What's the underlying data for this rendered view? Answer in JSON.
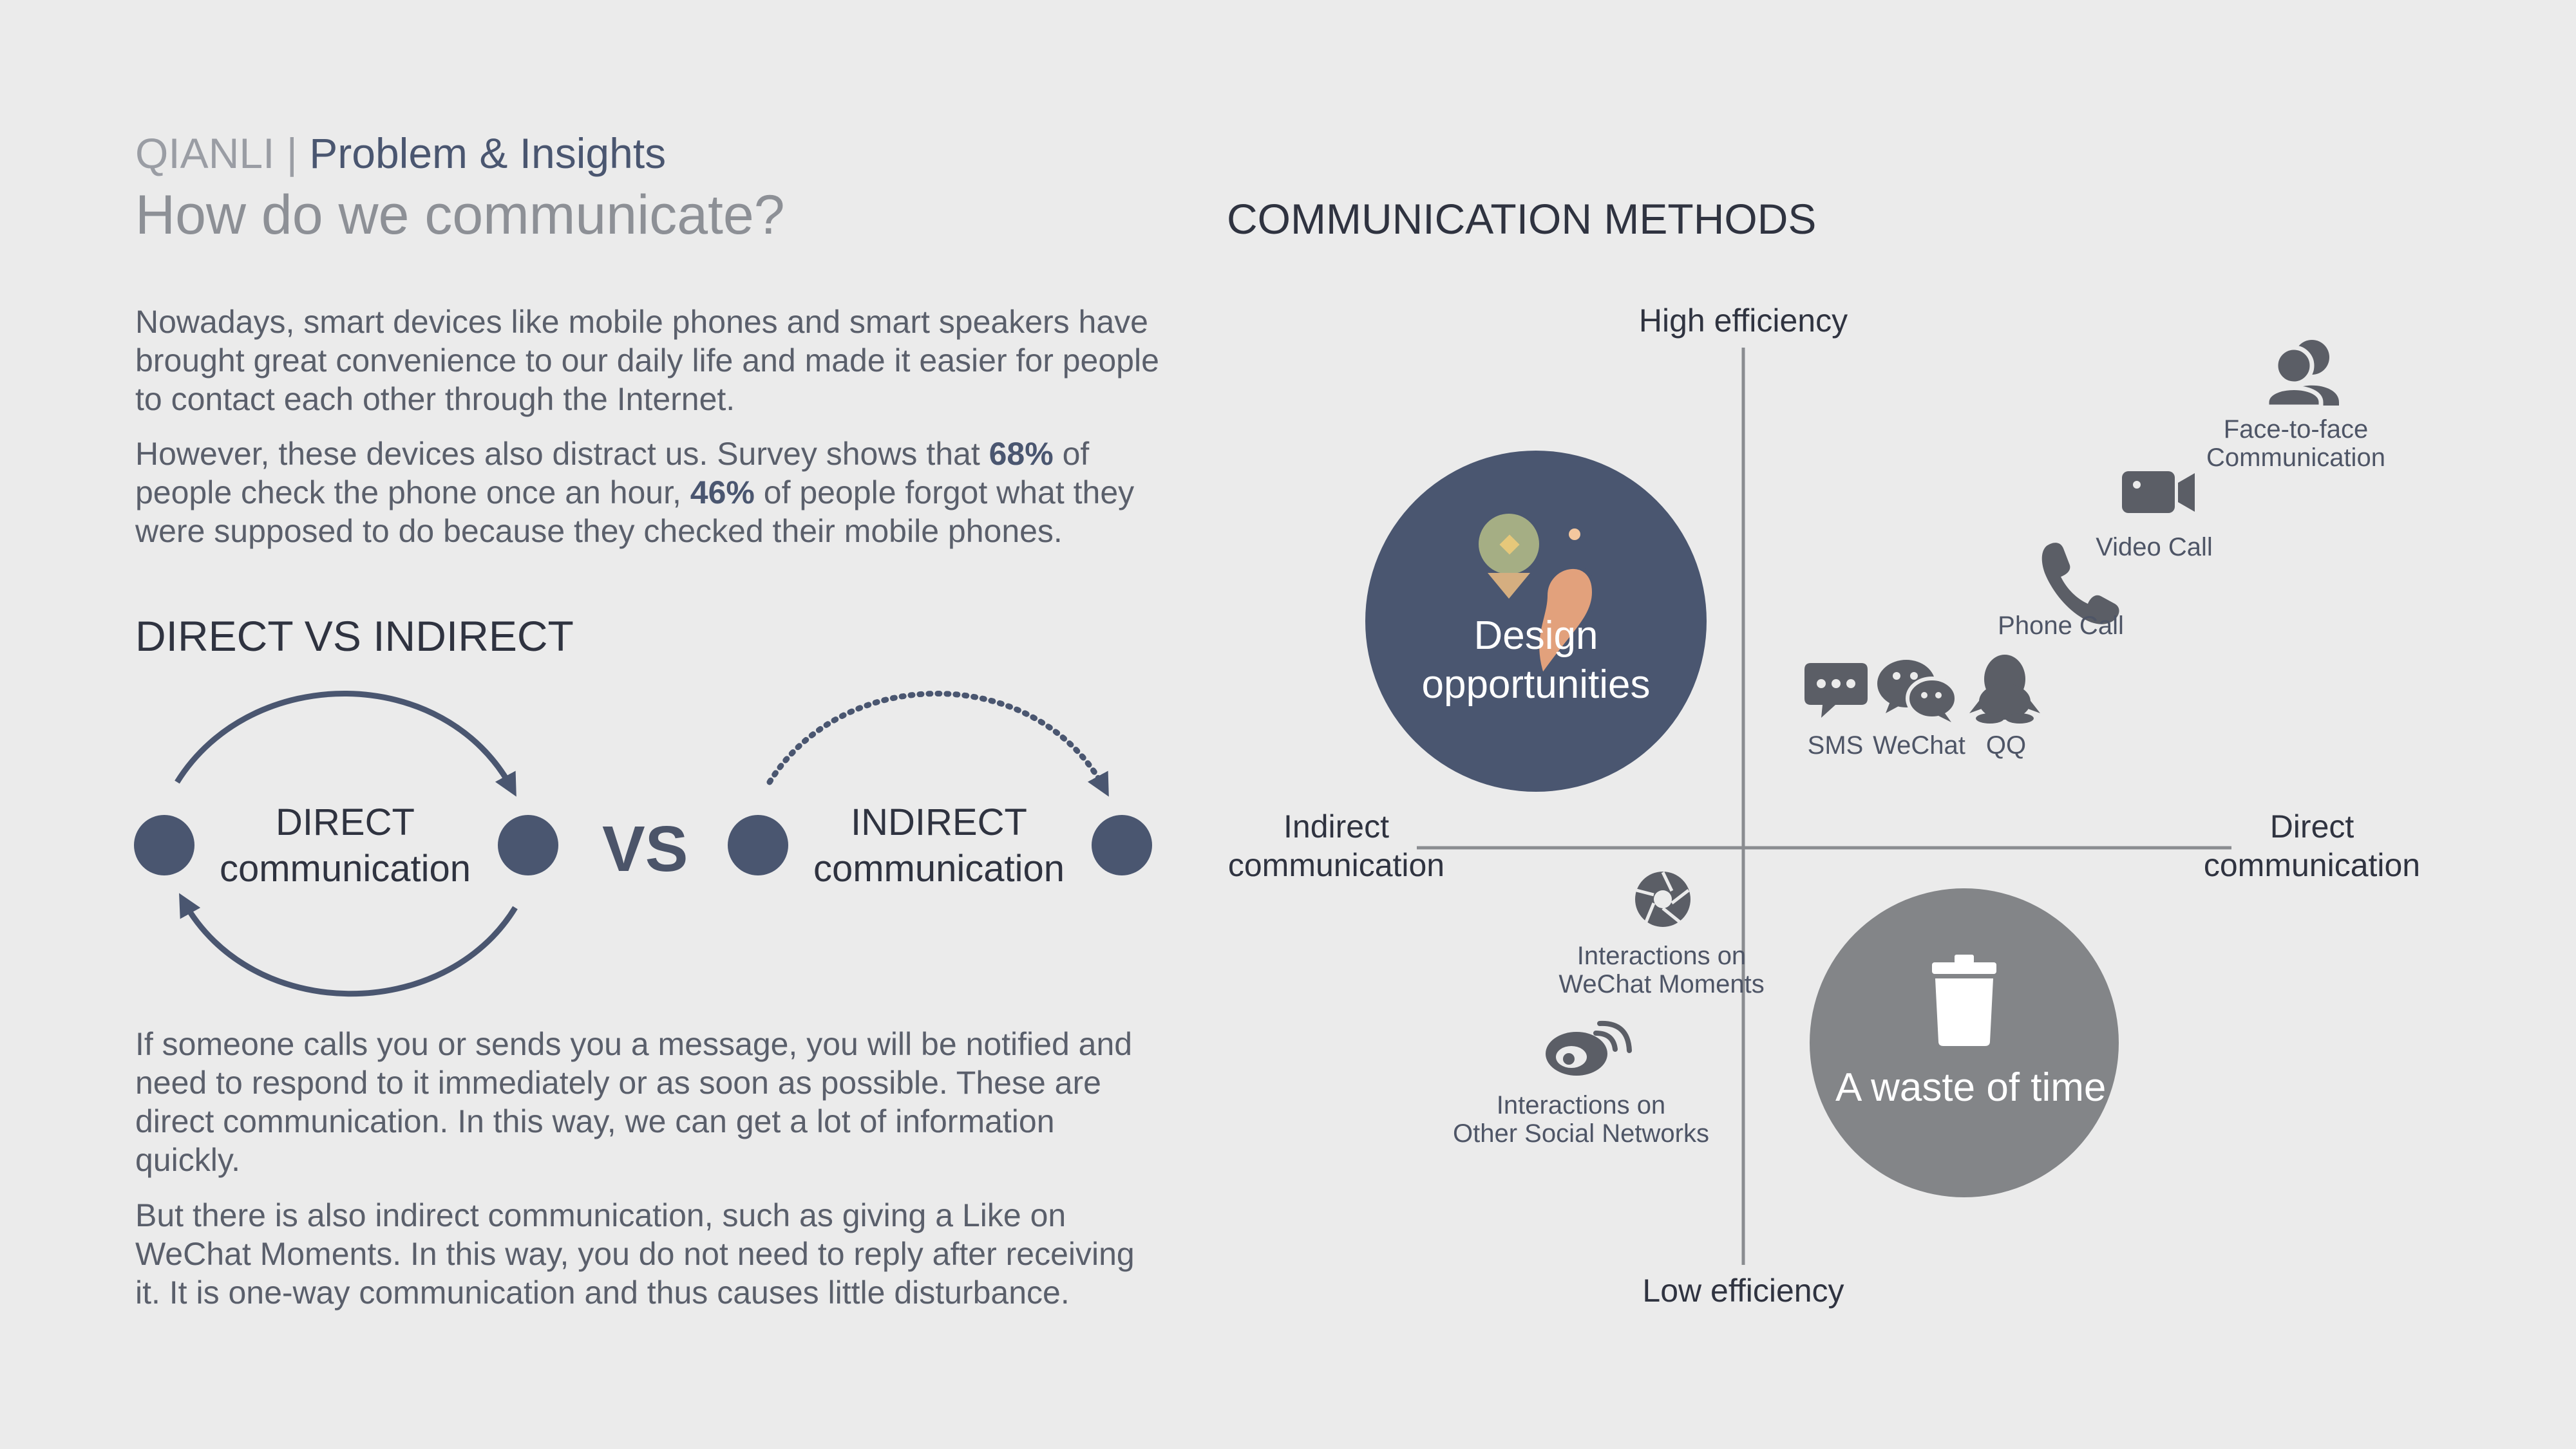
{
  "header": {
    "brand": "QIANLI",
    "separator": "|",
    "section": "Problem & Insights",
    "headline": "How do we communicate?"
  },
  "intro": {
    "p1": "Nowadays, smart devices like mobile phones and smart speakers have brought great convenience to our daily life and made it easier for people to contact each other through the Internet.",
    "p2_a": "However, these devices also distract us. Survey shows that ",
    "p2_stat1": "68%",
    "p2_b": " of people check the phone once an hour, ",
    "p2_stat2": "46%",
    "p2_c": " of people forgot what they were supposed to do because they checked their mobile phones."
  },
  "direct_vs_indirect": {
    "heading": "DIRECT VS INDIRECT",
    "direct_line1": "DIRECT",
    "direct_line2": "communication",
    "vs": "VS",
    "indirect_line1": "INDIRECT",
    "indirect_line2": "communication",
    "p3": "If someone calls you or sends you a message, you will be notified and need to respond to it immediately or as soon as possible. These are direct communication. In this way, we can get a lot of information quickly.",
    "p4": "But there is also indirect communication, such as giving a Like on WeChat Moments. In this way, you do not need to reply after receiving it. It is one-way communication and thus causes little disturbance."
  },
  "methods": {
    "heading": "COMMUNICATION METHODS",
    "axis_top": "High efficiency",
    "axis_bottom": "Low efficiency",
    "axis_left_1": "Indirect",
    "axis_left_2": "communication",
    "axis_right_1": "Direct",
    "axis_right_2": "communication",
    "items": {
      "face_1": "Face-to-face",
      "face_2": "Communication",
      "video": "Video Call",
      "phone": "Phone Call",
      "sms": "SMS",
      "wechat": "WeChat",
      "qq": "QQ",
      "moments_1": "Interactions on",
      "moments_2": "WeChat Moments",
      "social_1": "Interactions on",
      "social_2": "Other Social Networks"
    },
    "design_1": "Design",
    "design_2": "opportunities",
    "waste": "A waste of time"
  },
  "colors": {
    "background": "#ebebeb",
    "navy": "#4a5670",
    "grey_circle": "#838588",
    "icon": "#5b5e66",
    "pin_green": "#a5ae84",
    "pin_orange": "#e2a17c"
  },
  "icons": [
    "people-icon",
    "video-camera-icon",
    "phone-icon",
    "sms-bubble-icon",
    "wechat-icon",
    "qq-penguin-icon",
    "camera-aperture-icon",
    "weibo-icon",
    "trash-can-icon",
    "location-pins-icon"
  ]
}
